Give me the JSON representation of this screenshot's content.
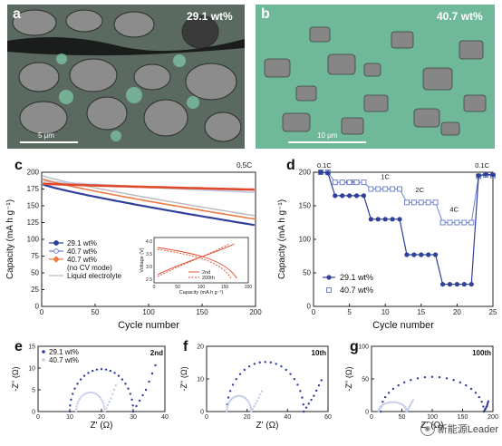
{
  "micrographs": [
    {
      "letter": "a",
      "tag": "29.1 wt%",
      "scale": "5 μm"
    },
    {
      "letter": "b",
      "tag": "40.7 wt%",
      "scale": "10 μm"
    }
  ],
  "watermark": "新能源Leader",
  "colors": {
    "navy": "#2f3f9a",
    "blue_sq": "#6e84cc",
    "red": "#e0492c",
    "orange": "#f07a45",
    "gray": "#b9b9b9",
    "light": "#c5cdea",
    "green_phase": "#76c0a3",
    "gray_phase": "#8b8b8b"
  },
  "chart_data": [
    {
      "id": "c",
      "type": "scatter",
      "rate_label": "0.5C",
      "xlabel": "Cycle number",
      "ylabel": "Capacity (mA h g⁻¹)",
      "xlim": [
        0,
        200
      ],
      "ylim": [
        0,
        200
      ],
      "xticks": [
        "0",
        "50",
        "100",
        "150",
        "200"
      ],
      "yticks": [
        "0",
        "25",
        "50",
        "75",
        "100",
        "125",
        "150",
        "175",
        "200"
      ],
      "legend": [
        {
          "label": "29.1 wt%",
          "marker": "circle-line"
        },
        {
          "label": "40.7 wt%",
          "marker": "hollow-circle-line"
        },
        {
          "label": "40.7 wt%",
          "marker": "diamond-line"
        },
        {
          "label": "(no CV mode)",
          "marker": "none"
        },
        {
          "label": "Liquid electrolyte",
          "marker": "line"
        }
      ],
      "series": [
        {
          "name": "29.1 wt%",
          "start": 182,
          "end": 121
        },
        {
          "name": "40.7 wt%",
          "start": 187,
          "end": 170
        },
        {
          "name": "40.7 wt% (no CV mode)",
          "start": 183,
          "end": 174
        },
        {
          "name": "Liquid electrolyte",
          "start": 195,
          "end": 135
        },
        {
          "start": 190,
          "end": 130
        }
      ],
      "inset": {
        "xlabel": "Capacity (mA h g⁻¹)",
        "ylabel": "Voltage (V)",
        "xticks": [
          "0",
          "50",
          "100",
          "150",
          "200"
        ],
        "yticks": [
          "4.0",
          "3.5",
          "3.0",
          "2.5"
        ],
        "legend": [
          {
            "label": "2nd",
            "style": "solid"
          },
          {
            "label": "200th",
            "style": "dashed"
          }
        ]
      }
    },
    {
      "id": "d",
      "type": "scatter",
      "xlabel": "Cycle number",
      "ylabel": "Capacity (mA h g⁻¹)",
      "xlim": [
        0,
        25
      ],
      "ylim": [
        0,
        200
      ],
      "xticks": [
        "0",
        "5",
        "10",
        "15",
        "20",
        "25"
      ],
      "yticks": [
        "0",
        "50",
        "100",
        "150",
        "200"
      ],
      "rate_labels": [
        {
          "text": "0.1C",
          "x": 1.5,
          "y": 207
        },
        {
          "text": "0.5C",
          "x": 5.5,
          "y": 182
        },
        {
          "text": "1C",
          "x": 10,
          "y": 190
        },
        {
          "text": "2C",
          "x": 14.8,
          "y": 170
        },
        {
          "text": "4C",
          "x": 19.6,
          "y": 141
        },
        {
          "text": "0.1C",
          "x": 23.5,
          "y": 207
        }
      ],
      "legend": [
        {
          "label": "29.1 wt%",
          "marker": "circle"
        },
        {
          "label": "40.7 wt%",
          "marker": "square"
        }
      ],
      "series": [
        {
          "name": "29.1 wt%",
          "x": [
            1,
            2,
            3,
            4,
            5,
            6,
            7,
            8,
            9,
            10,
            11,
            12,
            13,
            14,
            15,
            16,
            17,
            18,
            19,
            20,
            21,
            22,
            23,
            24,
            25
          ],
          "values": [
            200,
            199,
            165,
            165,
            165,
            165,
            165,
            130,
            130,
            130,
            130,
            130,
            77,
            77,
            77,
            77,
            77,
            33,
            33,
            33,
            33,
            33,
            195,
            197,
            196
          ]
        },
        {
          "name": "40.7 wt%",
          "x": [
            1,
            2,
            3,
            4,
            5,
            6,
            7,
            8,
            9,
            10,
            11,
            12,
            13,
            14,
            15,
            16,
            17,
            18,
            19,
            20,
            21,
            22,
            23,
            24,
            25
          ],
          "values": [
            200,
            200,
            185,
            185,
            185,
            185,
            185,
            175,
            175,
            175,
            175,
            175,
            155,
            155,
            155,
            155,
            155,
            125,
            125,
            125,
            125,
            125,
            194,
            196,
            195
          ]
        }
      ]
    },
    {
      "id": "e",
      "type": "scatter",
      "cycle_label": "2nd",
      "xlabel": "Z' (Ω)",
      "ylabel": "-Z'' (Ω)",
      "xlim": [
        0,
        40
      ],
      "ylim": [
        0,
        15
      ],
      "xticks": [
        "0",
        "10",
        "20",
        "30",
        "40"
      ],
      "yticks": [
        "0",
        "5",
        "10",
        "15"
      ],
      "legend": [
        {
          "label": "29.1 wt%"
        },
        {
          "label": "40.7 wt%"
        }
      ],
      "series": [
        {
          "name": "29.1 wt%",
          "arc": [
            10,
            30
          ],
          "tail": [
            [
              30,
              0
            ],
            [
              34,
              5
            ],
            [
              38,
              12.5
            ]
          ]
        },
        {
          "name": "40.7 wt%",
          "arc": [
            12,
            21
          ],
          "tail": [
            [
              21,
              0
            ],
            [
              23,
              3
            ],
            [
              25,
              7
            ]
          ]
        }
      ]
    },
    {
      "id": "f",
      "type": "scatter",
      "cycle_label": "10th",
      "xlabel": "Z' (Ω)",
      "ylabel": "-Z'' (Ω)",
      "xlim": [
        0,
        60
      ],
      "ylim": [
        0,
        25
      ],
      "xticks": [
        "0",
        "20",
        "40",
        "60"
      ],
      "yticks": [
        "0",
        "10",
        "20"
      ],
      "series": [
        {
          "name": "29.1 wt%",
          "arc": [
            10,
            48
          ],
          "tail": [
            [
              48,
              0
            ],
            [
              53,
              6
            ],
            [
              58,
              14
            ]
          ]
        },
        {
          "name": "40.7 wt%",
          "arc": [
            10,
            22
          ],
          "tail": [
            [
              22,
              0
            ],
            [
              25,
              4
            ],
            [
              28,
              9
            ]
          ]
        }
      ]
    },
    {
      "id": "g",
      "type": "scatter",
      "cycle_label": "100th",
      "xlabel": "Z' (Ω)",
      "ylabel": "-Z'' (Ω)",
      "xlim": [
        0,
        200
      ],
      "ylim": [
        0,
        100
      ],
      "xticks": [
        "0",
        "50",
        "100",
        "150",
        "200"
      ],
      "yticks": [
        "0",
        "50",
        "100"
      ],
      "series": [
        {
          "name": "29.1 wt%",
          "arc": [
            15,
            185
          ],
          "tail": [
            [
              185,
              0
            ],
            [
              190,
              8
            ],
            [
              193,
              18
            ]
          ]
        },
        {
          "name": "40.7 wt%",
          "arc": [
            12,
            58
          ],
          "tail": [
            [
              58,
              0
            ],
            [
              64,
              10
            ],
            [
              70,
              20
            ]
          ]
        }
      ]
    }
  ]
}
